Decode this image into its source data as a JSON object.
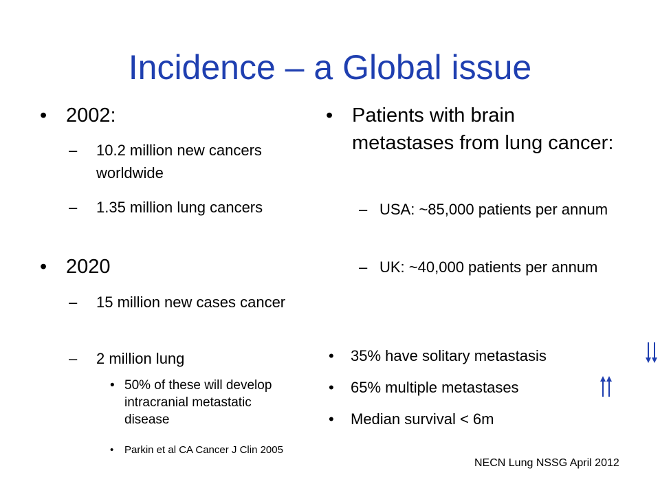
{
  "slide": {
    "title": "Incidence – a Global issue",
    "left": {
      "b1": "2002:",
      "b1_1": "10.2 million new cancers worldwide",
      "b1_2": "1.35 million lung cancers",
      "b2": "2020",
      "b2_1": "15 million new cases cancer",
      "b2_2": "2 million lung",
      "b2_2_1": "50% of these will develop intracranial metastatic disease",
      "b2_2_2": "Parkin et al CA Cancer J Clin 2005"
    },
    "right": {
      "b1": "Patients with brain metastases from lung cancer:",
      "b1_1": "USA: ~85,000 patients per annum",
      "b1_2": "UK: ~40,000 patients per annum",
      "b2": "35% have solitary metastasis",
      "b3": "65% multiple metastases",
      "b4": "Median survival < 6m"
    },
    "footer": "NECN Lung NSSG April 2012",
    "bullet_l1": "•",
    "bullet_l2": "–",
    "arrow_color": "#1f3fb0",
    "icons": [
      "double-down-arrow-icon",
      "double-up-arrow-icon"
    ]
  }
}
